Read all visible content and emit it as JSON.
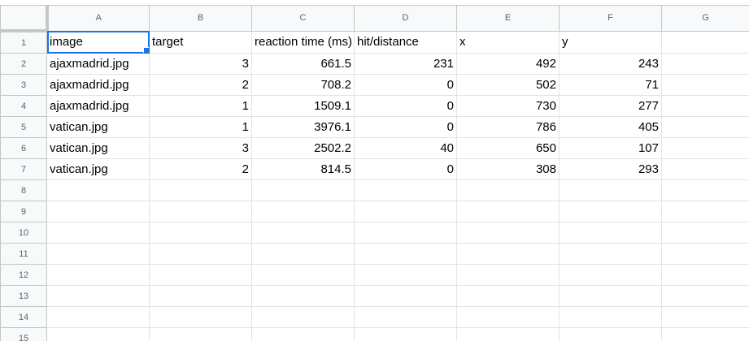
{
  "columns": [
    "A",
    "B",
    "C",
    "D",
    "E",
    "F",
    "G"
  ],
  "row_numbers": [
    "1",
    "2",
    "3",
    "4",
    "5",
    "6",
    "7",
    "8",
    "9",
    "10",
    "11",
    "12",
    "13",
    "14",
    "15"
  ],
  "rows": [
    [
      "image",
      "target",
      "reaction time (ms)",
      "hit/distance",
      "x",
      "y",
      ""
    ],
    [
      "ajaxmadrid.jpg",
      "3",
      "661.5",
      "231",
      "492",
      "243",
      ""
    ],
    [
      "ajaxmadrid.jpg",
      "2",
      "708.2",
      "0",
      "502",
      "71",
      ""
    ],
    [
      "ajaxmadrid.jpg",
      "1",
      "1509.1",
      "0",
      "730",
      "277",
      ""
    ],
    [
      "vatican.jpg",
      "1",
      "3976.1",
      "0",
      "786",
      "405",
      ""
    ],
    [
      "vatican.jpg",
      "3",
      "2502.2",
      "40",
      "650",
      "107",
      ""
    ],
    [
      "vatican.jpg",
      "2",
      "814.5",
      "0",
      "308",
      "293",
      ""
    ]
  ],
  "selected_cell": "A1",
  "colors": {
    "selection": "#1a73e8",
    "header_bg": "#f8f9fa",
    "gridline": "#e2e3e3"
  }
}
